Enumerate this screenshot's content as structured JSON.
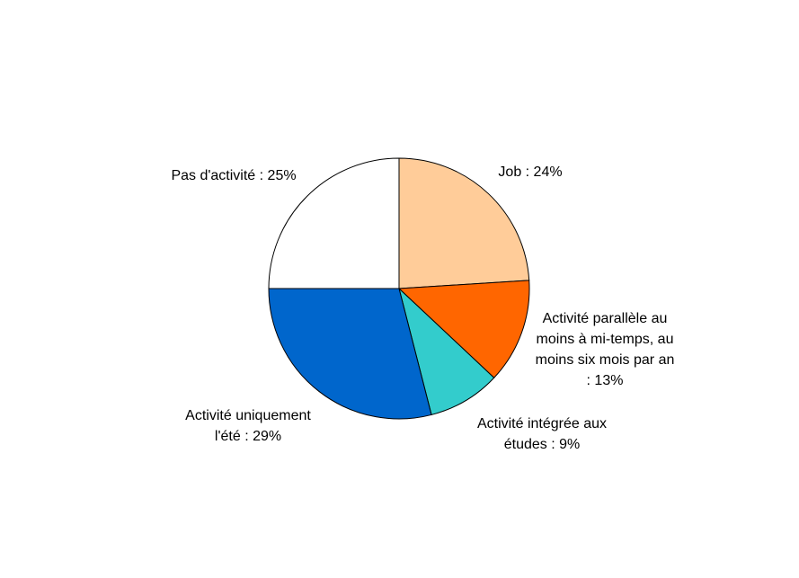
{
  "chart_data": {
    "type": "pie",
    "title": "",
    "start_angle_deg": 0,
    "direction": "clockwise",
    "slices": [
      {
        "label_lines": [
          "Job : 24%"
        ],
        "value": 24,
        "color": "#FFCC99"
      },
      {
        "label_lines": [
          "Activité parallèle au",
          "moins à mi-temps, au",
          "moins six mois par an",
          ": 13%"
        ],
        "value": 13,
        "color": "#FF6600"
      },
      {
        "label_lines": [
          "Activité intégrée aux",
          "études : 9%"
        ],
        "value": 9,
        "color": "#33CCCC"
      },
      {
        "label_lines": [
          "Activité uniquement",
          "l'été : 29%"
        ],
        "value": 29,
        "color": "#0066CC"
      },
      {
        "label_lines": [
          "Pas d'activité : 25%"
        ],
        "value": 25,
        "color": "#FFFFFF"
      }
    ]
  }
}
